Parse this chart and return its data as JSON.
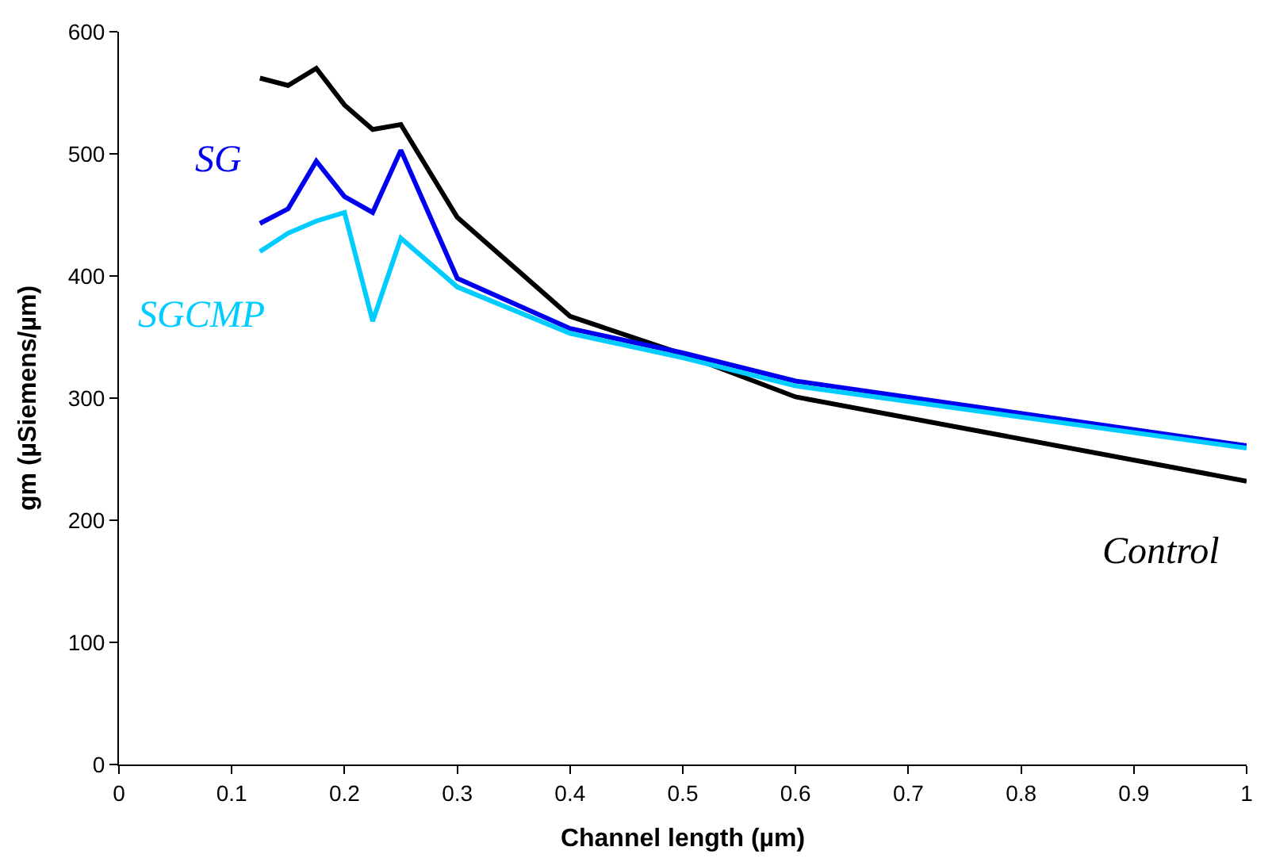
{
  "chart_data": {
    "type": "line",
    "xlabel": "Channel length (µm)",
    "ylabel": "gm (µSiemens/µm)",
    "x": [
      0.125,
      0.15,
      0.175,
      0.2,
      0.225,
      0.25,
      0.3,
      0.4,
      0.5,
      0.6,
      1.0
    ],
    "series": [
      {
        "name": "Control",
        "color": "#000000",
        "values": [
          562,
          556,
          570,
          540,
          520,
          524,
          448,
          367,
          336,
          301,
          232
        ]
      },
      {
        "name": "SG",
        "color": "#0000ee",
        "values": [
          443,
          455,
          494,
          465,
          452,
          503,
          398,
          357,
          337,
          314,
          261
        ]
      },
      {
        "name": "SGCMP",
        "color": "#00ccff",
        "values": [
          420,
          435,
          445,
          452,
          363,
          431,
          391,
          353,
          333,
          310,
          259
        ]
      }
    ],
    "xlim": [
      0,
      1
    ],
    "xticks": [
      0,
      0.1,
      0.2,
      0.3,
      0.4,
      0.5,
      0.6,
      0.7,
      0.8,
      0.9,
      1
    ],
    "ylim": [
      0,
      600
    ],
    "yticks": [
      0,
      100,
      200,
      300,
      400,
      500,
      600
    ],
    "legend": false,
    "marker": "none",
    "line_style": "solid"
  }
}
